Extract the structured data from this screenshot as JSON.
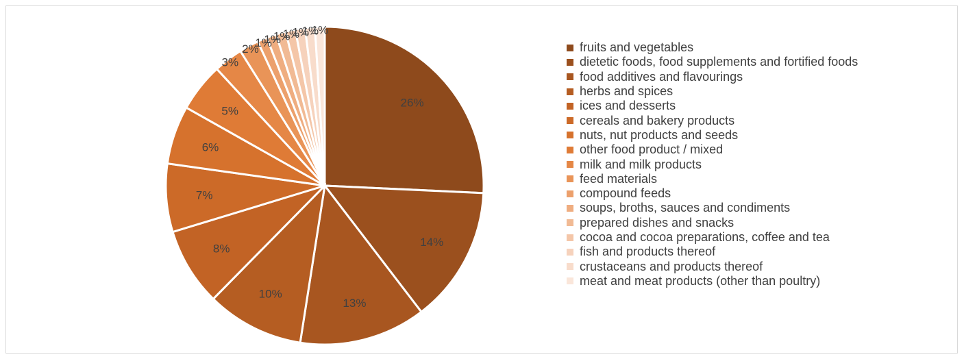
{
  "chart_data": {
    "type": "pie",
    "title": "",
    "legend_position": "right",
    "start_angle": "12 o'clock, clockwise",
    "categories": [
      "fruits and vegetables",
      "dietetic foods, food supplements and fortified foods",
      "food additives and flavourings",
      "herbs and spices",
      "ices and desserts",
      "cereals and bakery products",
      "nuts, nut products and seeds",
      "other food product / mixed",
      "milk and milk products",
      "feed materials",
      "compound feeds",
      "soups, broths, sauces and condiments",
      "prepared dishes and snacks",
      "cocoa and cocoa preparations, coffee and tea",
      "fish and products thereof",
      "crustaceans and products thereof",
      "meat and meat products (other than poultry)"
    ],
    "values": [
      26,
      14,
      13,
      10,
      8,
      7,
      6,
      5,
      3,
      2,
      1,
      1,
      1,
      1,
      1,
      1,
      1
    ],
    "labels": [
      "26%",
      "14%",
      "13%",
      "10%",
      "8%",
      "7%",
      "6%",
      "5%",
      "3%",
      "2%",
      "1%",
      "1%",
      "1%",
      "1%",
      "1%",
      "1%",
      "1%"
    ],
    "colors": [
      "#8e4a1c",
      "#9b501e",
      "#a85620",
      "#b55d22",
      "#c26325",
      "#cc6a28",
      "#d6722d",
      "#df7b36",
      "#e58746",
      "#e99458",
      "#eca06c",
      "#efad80",
      "#f1ba94",
      "#f4c6a8",
      "#f6d2bc",
      "#f8dccb",
      "#fae6da"
    ]
  }
}
